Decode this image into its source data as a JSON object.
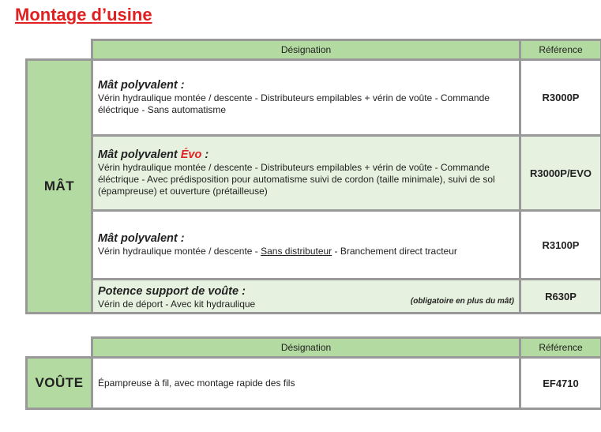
{
  "title": "Montage d’usine",
  "table1": {
    "header": {
      "designation": "Désignation",
      "reference": "Référence"
    },
    "group": "MÂT",
    "rows": [
      {
        "name": "Mât polyvalent :",
        "desc": "Vérin hydraulique montée / descente - Distributeurs empilables + vérin de voûte - Commande éléctrique - Sans automatisme",
        "ref": "R3000P"
      },
      {
        "name_pre": "Mât polyvalent ",
        "name_highlight": "Évo",
        "name_post": " :",
        "desc": "Vérin hydraulique montée / descente - Distributeurs empilables + vérin de voûte - Commande éléctrique - Avec prédisposition pour automatisme suivi de cordon (taille minimale), suivi de sol (épampreuse) et ouverture (prétailleuse)",
        "ref": "R3000P/EVO"
      },
      {
        "name": "Mât polyvalent :",
        "desc_pre": "Vérin hydraulique montée / descente - ",
        "desc_underline": "Sans distributeur",
        "desc_post": " - Branchement direct tracteur",
        "ref": "R3100P"
      },
      {
        "name": "Potence support de voûte :",
        "desc": "Vérin de déport - Avec kit hydraulique",
        "note": "(obligatoire en plus du mât)",
        "ref": "R630P"
      }
    ]
  },
  "table2": {
    "header": {
      "designation": "Désignation",
      "reference": "Référence"
    },
    "group": "VOÛTE",
    "rows": [
      {
        "desc": "Épampreuse à fil, avec montage rapide des fils",
        "ref": "EF4710"
      }
    ]
  },
  "colors": {
    "title": "#e02020",
    "header_bg": "#b3daa0",
    "row_alt_bg": "#e6f2df",
    "border": "#999999"
  }
}
